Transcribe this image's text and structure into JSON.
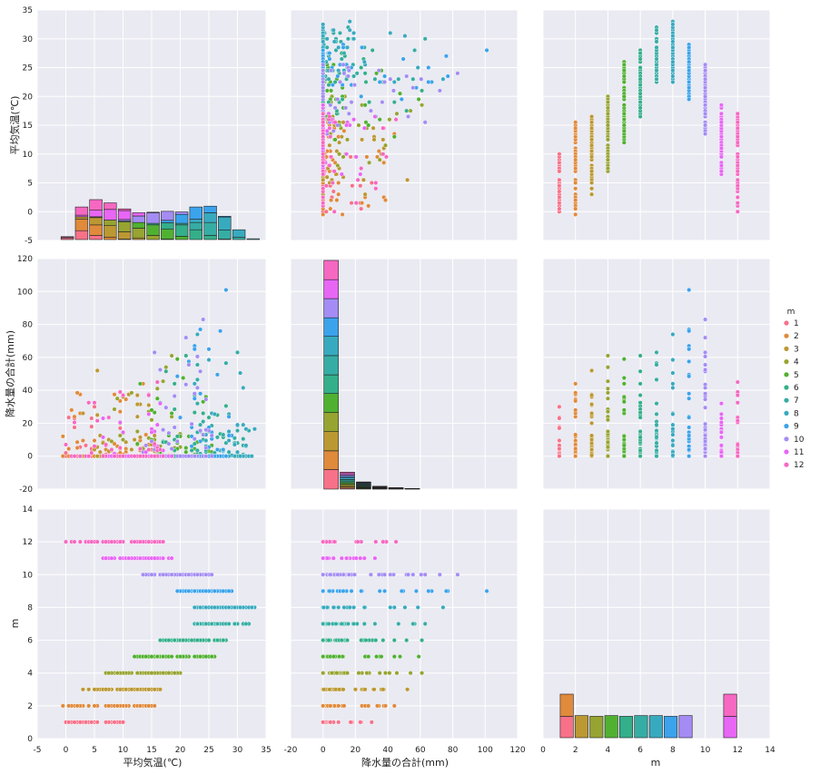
{
  "chart_data": {
    "type": "pairplot",
    "variables": [
      "平均気温(℃)",
      "降水量の合計(mm)",
      "m"
    ],
    "hue": "m",
    "legend": {
      "title": "m",
      "position": "right",
      "entries": [
        "1",
        "2",
        "3",
        "4",
        "5",
        "6",
        "7",
        "8",
        "9",
        "10",
        "11",
        "12"
      ]
    },
    "palette": [
      "#f77189",
      "#e08a3b",
      "#bb9832",
      "#97a431",
      "#50b131",
      "#34af8a",
      "#36ada4",
      "#38aabf",
      "#3ba3ec",
      "#a48cf4",
      "#e866f4",
      "#f668c2"
    ],
    "axes": {
      "平均気温(℃)": {
        "lim": [
          -5,
          35
        ],
        "ticks": [
          -5,
          0,
          5,
          10,
          15,
          20,
          25,
          30,
          35
        ]
      },
      "降水量の合計(mm)": {
        "lim": [
          -20,
          120
        ],
        "ticks": [
          -20,
          0,
          20,
          40,
          60,
          80,
          100,
          120
        ]
      },
      "m": {
        "lim": [
          0,
          14
        ],
        "ticks": [
          0,
          2,
          4,
          6,
          8,
          10,
          12,
          14
        ]
      }
    },
    "temp_hist": {
      "bins": [
        -1,
        1.5,
        4,
        6.5,
        9,
        11.5,
        14,
        16.5,
        19,
        21.5,
        24,
        26.5,
        29,
        31.5,
        34
      ],
      "counts": [
        [
          10,
          55,
          25,
          0,
          0,
          0,
          0,
          0,
          0,
          0,
          0,
          0,
          0,
          0
        ],
        [
          3,
          70,
          65,
          15,
          3,
          0,
          0,
          0,
          0,
          0,
          0,
          0,
          0,
          0
        ],
        [
          0,
          15,
          45,
          70,
          45,
          10,
          0,
          0,
          0,
          0,
          0,
          0,
          0,
          0
        ],
        [
          0,
          0,
          5,
          35,
          60,
          60,
          25,
          3,
          0,
          0,
          0,
          0,
          0,
          0
        ],
        [
          0,
          0,
          0,
          0,
          5,
          35,
          65,
          60,
          20,
          0,
          0,
          0,
          0,
          0
        ],
        [
          0,
          0,
          0,
          0,
          0,
          0,
          10,
          40,
          70,
          60,
          25,
          3,
          0,
          0
        ],
        [
          0,
          0,
          0,
          0,
          0,
          0,
          0,
          0,
          10,
          45,
          80,
          55,
          15,
          0
        ],
        [
          0,
          0,
          0,
          0,
          0,
          0,
          0,
          0,
          0,
          20,
          60,
          80,
          45,
          5
        ],
        [
          0,
          0,
          0,
          0,
          0,
          0,
          0,
          15,
          55,
          75,
          40,
          5,
          0,
          0
        ],
        [
          0,
          0,
          0,
          0,
          10,
          40,
          65,
          55,
          15,
          0,
          0,
          0,
          0,
          0
        ],
        [
          0,
          10,
          40,
          65,
          55,
          20,
          3,
          0,
          0,
          0,
          0,
          0,
          0,
          0
        ],
        [
          5,
          50,
          65,
          40,
          10,
          0,
          0,
          0,
          0,
          0,
          0,
          0,
          0,
          0
        ]
      ]
    },
    "precip_hist": {
      "bins": [
        0,
        10,
        20,
        30,
        40,
        50,
        60,
        70,
        80,
        90,
        100
      ],
      "counts": [
        [
          590,
          30,
          10,
          3,
          1,
          0,
          0,
          0,
          0,
          0
        ],
        [
          560,
          35,
          12,
          4,
          2,
          1,
          0,
          0,
          0,
          0
        ],
        [
          580,
          40,
          15,
          5,
          3,
          1,
          0,
          0,
          0,
          0
        ],
        [
          575,
          45,
          18,
          8,
          4,
          2,
          0,
          0,
          0,
          0
        ],
        [
          570,
          45,
          20,
          8,
          4,
          2,
          1,
          0,
          0,
          0
        ],
        [
          560,
          50,
          25,
          10,
          5,
          3,
          1,
          0,
          0,
          0
        ],
        [
          580,
          45,
          20,
          8,
          3,
          2,
          1,
          0,
          0,
          0
        ],
        [
          580,
          45,
          20,
          10,
          5,
          2,
          1,
          1,
          0,
          0
        ],
        [
          560,
          45,
          25,
          10,
          6,
          3,
          1,
          1,
          1,
          1
        ],
        [
          575,
          45,
          20,
          8,
          4,
          2,
          1,
          1,
          0,
          0
        ],
        [
          570,
          45,
          15,
          5,
          2,
          1,
          0,
          0,
          0,
          0
        ],
        [
          580,
          40,
          15,
          5,
          2,
          1,
          0,
          0,
          0,
          0
        ]
      ]
    },
    "m_hist": {
      "bins": [
        1,
        1.917,
        2.833,
        3.75,
        4.667,
        5.583,
        6.5,
        7.417,
        8.333,
        9.25,
        10.167,
        11.083,
        12
      ],
      "counts": [
        [
          0.3,
          0,
          0,
          0,
          0,
          0,
          0,
          0,
          0,
          0,
          0,
          0
        ],
        [
          0.31,
          0,
          0,
          0,
          0,
          0,
          0,
          0,
          0,
          0,
          0,
          0
        ],
        [
          0,
          0.31,
          0,
          0,
          0,
          0,
          0,
          0,
          0,
          0,
          0,
          0
        ],
        [
          0,
          0,
          0.3,
          0,
          0,
          0,
          0,
          0,
          0,
          0,
          0,
          0
        ],
        [
          0,
          0,
          0,
          0.31,
          0,
          0,
          0,
          0,
          0,
          0,
          0,
          0
        ],
        [
          0,
          0,
          0,
          0,
          0.3,
          0,
          0,
          0,
          0,
          0,
          0,
          0
        ],
        [
          0,
          0,
          0,
          0,
          0,
          0.31,
          0,
          0,
          0,
          0,
          0,
          0
        ],
        [
          0,
          0,
          0,
          0,
          0,
          0,
          0.31,
          0,
          0,
          0,
          0,
          0
        ],
        [
          0,
          0,
          0,
          0,
          0,
          0,
          0,
          0.3,
          0,
          0,
          0,
          0
        ],
        [
          0,
          0,
          0,
          0,
          0,
          0,
          0,
          0,
          0.31,
          0,
          0,
          0
        ],
        [
          0,
          0,
          0,
          0,
          0,
          0,
          0,
          0,
          0,
          0,
          0,
          0.3
        ],
        [
          0,
          0,
          0,
          0,
          0,
          0,
          0,
          0,
          0,
          0,
          0,
          0.31
        ]
      ]
    },
    "temp_range_by_month": [
      [
        0,
        10
      ],
      [
        -1,
        15.5
      ],
      [
        2.5,
        16.5
      ],
      [
        6.5,
        20.5
      ],
      [
        12,
        26
      ],
      [
        16.5,
        28
      ],
      [
        22,
        32.5
      ],
      [
        22.5,
        33
      ],
      [
        19.5,
        29
      ],
      [
        13,
        26
      ],
      [
        6,
        18.5
      ],
      [
        0,
        17.5
      ]
    ],
    "precip_max_by_month": [
      30,
      44,
      52,
      61,
      59,
      61,
      63,
      74,
      101,
      83,
      32,
      45
    ],
    "points_per_month": 60
  }
}
